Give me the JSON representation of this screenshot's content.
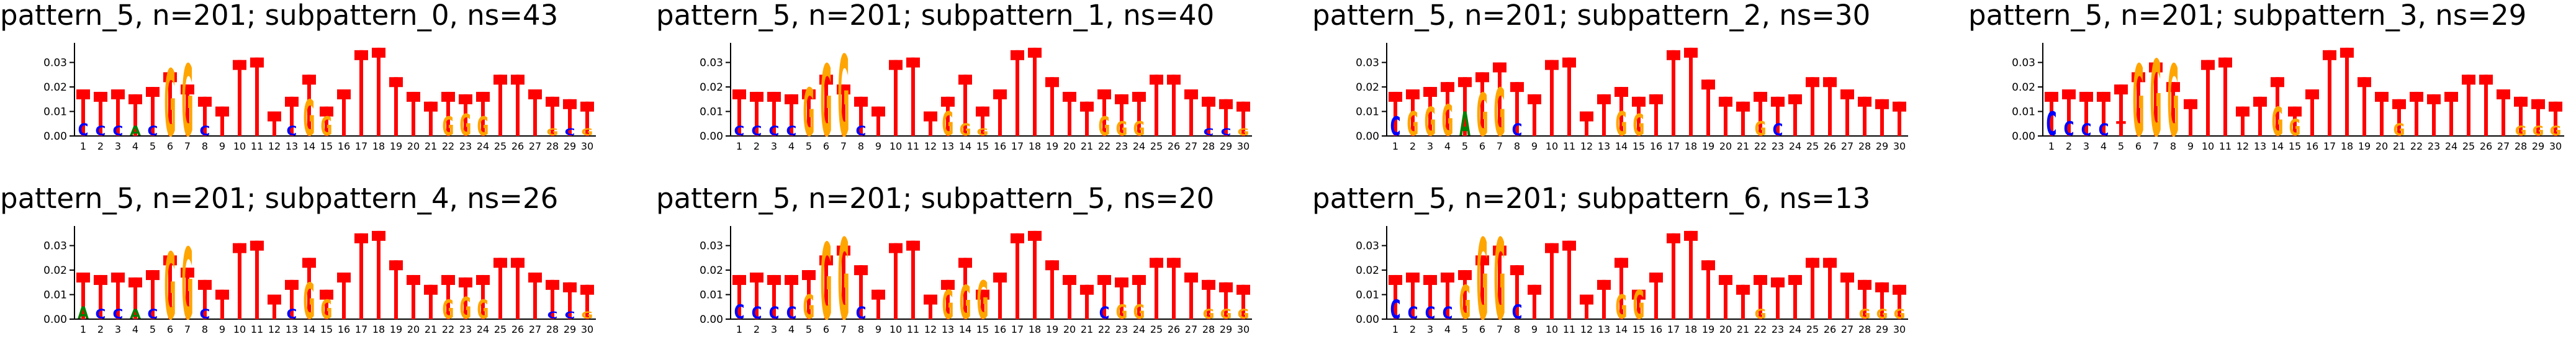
{
  "colors": {
    "bar": "#ff0000",
    "G": "#ffa500",
    "C": "#0000ff",
    "A": "#008000",
    "T": "#ff0000",
    "axis": "#000000"
  },
  "chart_data": [
    {
      "type": "bar",
      "title": "pattern_5, n=201; subpattern_0, ns=43",
      "categories": [
        "1",
        "2",
        "3",
        "4",
        "5",
        "6",
        "7",
        "8",
        "9",
        "10",
        "11",
        "12",
        "13",
        "14",
        "15",
        "16",
        "17",
        "18",
        "19",
        "20",
        "21",
        "22",
        "23",
        "24",
        "25",
        "26",
        "27",
        "28",
        "29",
        "30"
      ],
      "values": [
        0.019,
        0.018,
        0.019,
        0.017,
        0.02,
        0.026,
        0.021,
        0.016,
        0.012,
        0.031,
        0.032,
        0.01,
        0.016,
        0.025,
        0.012,
        0.019,
        0.035,
        0.036,
        0.024,
        0.018,
        0.014,
        0.018,
        0.017,
        0.018,
        0.025,
        0.025,
        0.019,
        0.016,
        0.015,
        0.014
      ],
      "logo_letters": [
        "C",
        "C",
        "C",
        "A",
        "C",
        "G",
        "G",
        "C",
        "",
        "",
        "",
        "",
        "C",
        "G",
        "G",
        "",
        "",
        "",
        "",
        "",
        "",
        "G",
        "G",
        "G",
        "",
        "",
        "",
        "G",
        "C",
        "G"
      ],
      "letter_heights": [
        0.005,
        0.004,
        0.004,
        0.004,
        0.004,
        0.028,
        0.03,
        0.004,
        0,
        0,
        0,
        0,
        0.004,
        0.015,
        0.008,
        0,
        0,
        0,
        0,
        0,
        0,
        0.008,
        0.009,
        0.008,
        0,
        0,
        0,
        0.003,
        0.003,
        0.003
      ],
      "yticks": [
        "0.00",
        "0.01",
        "0.02",
        "0.03"
      ],
      "ylim": [
        0,
        0.038
      ]
    },
    {
      "type": "bar",
      "title": "pattern_5, n=201; subpattern_1, ns=40",
      "categories": [
        "1",
        "2",
        "3",
        "4",
        "5",
        "6",
        "7",
        "8",
        "9",
        "10",
        "11",
        "12",
        "13",
        "14",
        "15",
        "16",
        "17",
        "18",
        "19",
        "20",
        "21",
        "22",
        "23",
        "24",
        "25",
        "26",
        "27",
        "28",
        "29",
        "30"
      ],
      "values": [
        0.019,
        0.018,
        0.018,
        0.017,
        0.019,
        0.025,
        0.021,
        0.016,
        0.012,
        0.031,
        0.032,
        0.01,
        0.016,
        0.025,
        0.012,
        0.019,
        0.035,
        0.036,
        0.024,
        0.018,
        0.014,
        0.019,
        0.017,
        0.018,
        0.025,
        0.025,
        0.019,
        0.016,
        0.015,
        0.014
      ],
      "logo_letters": [
        "C",
        "C",
        "C",
        "C",
        "G",
        "G",
        "G",
        "C",
        "",
        "",
        "",
        "",
        "G",
        "G",
        "G",
        "",
        "",
        "",
        "",
        "",
        "",
        "G",
        "G",
        "G",
        "",
        "",
        "",
        "C",
        "C",
        "G"
      ],
      "letter_heights": [
        0.004,
        0.004,
        0.004,
        0.004,
        0.02,
        0.03,
        0.034,
        0.004,
        0,
        0,
        0,
        0,
        0.01,
        0.005,
        0.003,
        0,
        0,
        0,
        0,
        0,
        0,
        0.008,
        0.006,
        0.006,
        0,
        0,
        0,
        0.003,
        0.003,
        0.003
      ],
      "yticks": [
        "0.00",
        "0.01",
        "0.02",
        "0.03"
      ],
      "ylim": [
        0,
        0.038
      ]
    },
    {
      "type": "bar",
      "title": "pattern_5, n=201; subpattern_2, ns=30",
      "categories": [
        "1",
        "2",
        "3",
        "4",
        "5",
        "6",
        "7",
        "8",
        "9",
        "10",
        "11",
        "12",
        "13",
        "14",
        "15",
        "16",
        "17",
        "18",
        "19",
        "20",
        "21",
        "22",
        "23",
        "24",
        "25",
        "26",
        "27",
        "28",
        "29",
        "30"
      ],
      "values": [
        0.018,
        0.019,
        0.02,
        0.022,
        0.024,
        0.026,
        0.03,
        0.022,
        0.017,
        0.031,
        0.032,
        0.01,
        0.017,
        0.02,
        0.016,
        0.017,
        0.035,
        0.036,
        0.023,
        0.016,
        0.014,
        0.018,
        0.016,
        0.017,
        0.024,
        0.024,
        0.019,
        0.016,
        0.015,
        0.014
      ],
      "logo_letters": [
        "C",
        "G",
        "G",
        "G",
        "A",
        "G",
        "G",
        "C",
        "",
        "",
        "",
        "",
        "",
        "G",
        "G",
        "",
        "",
        "",
        "",
        "",
        "",
        "G",
        "C",
        "",
        "",
        "",
        "",
        "",
        "",
        ""
      ],
      "letter_heights": [
        0.008,
        0.01,
        0.012,
        0.013,
        0.01,
        0.018,
        0.02,
        0.005,
        0,
        0,
        0,
        0,
        0,
        0.01,
        0.009,
        0,
        0,
        0,
        0,
        0,
        0,
        0.006,
        0.005,
        0,
        0,
        0,
        0,
        0,
        0,
        0
      ],
      "yticks": [
        "0.00",
        "0.01",
        "0.02",
        "0.03"
      ],
      "ylim": [
        0,
        0.038
      ]
    },
    {
      "type": "bar",
      "title": "pattern_5, n=201; subpattern_3, ns=29",
      "categories": [
        "1",
        "2",
        "3",
        "4",
        "5",
        "6",
        "7",
        "8",
        "9",
        "10",
        "11",
        "12",
        "13",
        "14",
        "15",
        "16",
        "17",
        "18",
        "19",
        "20",
        "21",
        "22",
        "23",
        "24",
        "25",
        "26",
        "27",
        "28",
        "29",
        "30"
      ],
      "values": [
        0.018,
        0.019,
        0.018,
        0.018,
        0.021,
        0.026,
        0.03,
        0.022,
        0.015,
        0.031,
        0.032,
        0.012,
        0.016,
        0.024,
        0.012,
        0.019,
        0.035,
        0.036,
        0.024,
        0.018,
        0.015,
        0.018,
        0.017,
        0.018,
        0.025,
        0.025,
        0.019,
        0.016,
        0.015,
        0.014
      ],
      "logo_letters": [
        "C",
        "C",
        "C",
        "C",
        "T",
        "G",
        "G",
        "G",
        "",
        "",
        "",
        "",
        "",
        "G",
        "G",
        "",
        "",
        "",
        "",
        "",
        "G",
        "",
        "",
        "",
        "",
        "",
        "",
        "G",
        "G",
        "G"
      ],
      "letter_heights": [
        0.01,
        0.006,
        0.005,
        0.005,
        0.006,
        0.03,
        0.032,
        0.03,
        0,
        0,
        0,
        0,
        0,
        0.012,
        0.007,
        0,
        0,
        0,
        0,
        0,
        0.005,
        0,
        0,
        0,
        0,
        0,
        0,
        0.004,
        0.004,
        0.004
      ],
      "yticks": [
        "0.00",
        "0.01",
        "0.02",
        "0.03"
      ],
      "ylim": [
        0,
        0.038
      ]
    },
    {
      "type": "bar",
      "title": "pattern_5, n=201; subpattern_4, ns=26",
      "categories": [
        "1",
        "2",
        "3",
        "4",
        "5",
        "6",
        "7",
        "8",
        "9",
        "10",
        "11",
        "12",
        "13",
        "14",
        "15",
        "16",
        "17",
        "18",
        "19",
        "20",
        "21",
        "22",
        "23",
        "24",
        "25",
        "26",
        "27",
        "28",
        "29",
        "30"
      ],
      "values": [
        0.019,
        0.018,
        0.019,
        0.017,
        0.02,
        0.026,
        0.021,
        0.016,
        0.012,
        0.031,
        0.032,
        0.01,
        0.016,
        0.025,
        0.012,
        0.019,
        0.035,
        0.036,
        0.024,
        0.018,
        0.014,
        0.018,
        0.017,
        0.018,
        0.025,
        0.025,
        0.019,
        0.016,
        0.015,
        0.014
      ],
      "logo_letters": [
        "A",
        "C",
        "C",
        "A",
        "C",
        "G",
        "G",
        "C",
        "",
        "",
        "",
        "",
        "C",
        "G",
        "G",
        "",
        "",
        "",
        "",
        "",
        "",
        "G",
        "G",
        "G",
        "",
        "",
        "",
        "C",
        "C",
        "G"
      ],
      "letter_heights": [
        0.005,
        0.004,
        0.004,
        0.004,
        0.004,
        0.028,
        0.03,
        0.004,
        0,
        0,
        0,
        0,
        0.004,
        0.015,
        0.008,
        0,
        0,
        0,
        0,
        0,
        0,
        0.008,
        0.009,
        0.008,
        0,
        0,
        0,
        0.003,
        0.003,
        0.003
      ],
      "yticks": [
        "0.00",
        "0.01",
        "0.02",
        "0.03"
      ],
      "ylim": [
        0,
        0.038
      ]
    },
    {
      "type": "bar",
      "title": "pattern_5, n=201; subpattern_5, ns=20",
      "categories": [
        "1",
        "2",
        "3",
        "4",
        "5",
        "6",
        "7",
        "8",
        "9",
        "10",
        "11",
        "12",
        "13",
        "14",
        "15",
        "16",
        "17",
        "18",
        "19",
        "20",
        "21",
        "22",
        "23",
        "24",
        "25",
        "26",
        "27",
        "28",
        "29",
        "30"
      ],
      "values": [
        0.018,
        0.019,
        0.018,
        0.018,
        0.02,
        0.026,
        0.03,
        0.022,
        0.012,
        0.031,
        0.032,
        0.01,
        0.016,
        0.025,
        0.012,
        0.019,
        0.035,
        0.036,
        0.024,
        0.018,
        0.014,
        0.018,
        0.017,
        0.018,
        0.025,
        0.025,
        0.019,
        0.016,
        0.015,
        0.014
      ],
      "logo_letters": [
        "C",
        "C",
        "C",
        "C",
        "G",
        "G",
        "G",
        "C",
        "",
        "",
        "",
        "",
        "G",
        "G",
        "G",
        "",
        "",
        "",
        "",
        "",
        "",
        "C",
        "G",
        "G",
        "",
        "",
        "",
        "G",
        "G",
        "G"
      ],
      "letter_heights": [
        0.006,
        0.005,
        0.005,
        0.005,
        0.01,
        0.032,
        0.034,
        0.005,
        0,
        0,
        0,
        0,
        0.012,
        0.014,
        0.016,
        0,
        0,
        0,
        0,
        0,
        0,
        0.005,
        0.006,
        0.006,
        0,
        0,
        0,
        0.004,
        0.004,
        0.004
      ],
      "yticks": [
        "0.00",
        "0.01",
        "0.02",
        "0.03"
      ],
      "ylim": [
        0,
        0.038
      ]
    },
    {
      "type": "bar",
      "title": "pattern_5, n=201; subpattern_6, ns=13",
      "categories": [
        "1",
        "2",
        "3",
        "4",
        "5",
        "6",
        "7",
        "8",
        "9",
        "10",
        "11",
        "12",
        "13",
        "14",
        "15",
        "16",
        "17",
        "18",
        "19",
        "20",
        "21",
        "22",
        "23",
        "24",
        "25",
        "26",
        "27",
        "28",
        "29",
        "30"
      ],
      "values": [
        0.018,
        0.019,
        0.018,
        0.019,
        0.02,
        0.026,
        0.03,
        0.022,
        0.014,
        0.031,
        0.032,
        0.01,
        0.016,
        0.025,
        0.012,
        0.019,
        0.035,
        0.036,
        0.024,
        0.018,
        0.014,
        0.018,
        0.017,
        0.018,
        0.025,
        0.025,
        0.019,
        0.016,
        0.015,
        0.014
      ],
      "logo_letters": [
        "C",
        "C",
        "C",
        "C",
        "G",
        "G",
        "G",
        "C",
        "",
        "",
        "",
        "",
        "",
        "G",
        "G",
        "",
        "",
        "",
        "",
        "",
        "",
        "G",
        "",
        "",
        "",
        "",
        "",
        "G",
        "G",
        "G"
      ],
      "letter_heights": [
        0.008,
        0.005,
        0.005,
        0.005,
        0.014,
        0.034,
        0.034,
        0.006,
        0,
        0,
        0,
        0,
        0,
        0.01,
        0.012,
        0,
        0,
        0,
        0,
        0,
        0,
        0.004,
        0,
        0,
        0,
        0,
        0,
        0.004,
        0.004,
        0.004
      ],
      "yticks": [
        "0.00",
        "0.01",
        "0.02",
        "0.03"
      ],
      "ylim": [
        0,
        0.038
      ]
    }
  ]
}
